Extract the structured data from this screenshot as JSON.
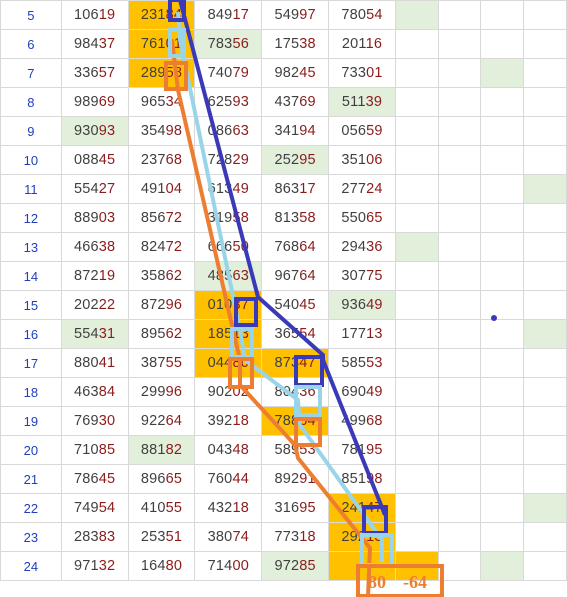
{
  "rows": [
    {
      "n": "5",
      "cells": [
        "10619",
        "23184",
        "84917",
        "54997",
        "78054"
      ]
    },
    {
      "n": "6",
      "cells": [
        "98437",
        "76101",
        "78356",
        "17538",
        "20116"
      ]
    },
    {
      "n": "7",
      "cells": [
        "33657",
        "28958",
        "74079",
        "98245",
        "73301"
      ]
    },
    {
      "n": "8",
      "cells": [
        "98969",
        "96534",
        "62593",
        "43769",
        "51139"
      ]
    },
    {
      "n": "9",
      "cells": [
        "93093",
        "35498",
        "08663",
        "34194",
        "05659"
      ]
    },
    {
      "n": "10",
      "cells": [
        "08845",
        "23768",
        "72829",
        "25295",
        "35106"
      ]
    },
    {
      "n": "11",
      "cells": [
        "55427",
        "49104",
        "61349",
        "86317",
        "27724"
      ]
    },
    {
      "n": "12",
      "cells": [
        "88903",
        "85672",
        "31958",
        "81358",
        "55065"
      ]
    },
    {
      "n": "13",
      "cells": [
        "46638",
        "82472",
        "66650",
        "76864",
        "29436"
      ]
    },
    {
      "n": "14",
      "cells": [
        "87219",
        "35862",
        "48563",
        "96764",
        "30775"
      ]
    },
    {
      "n": "15",
      "cells": [
        "20222",
        "87296",
        "01037",
        "54045",
        "93649"
      ]
    },
    {
      "n": "16",
      "cells": [
        "55431",
        "89562",
        "18513",
        "36554",
        "17713"
      ]
    },
    {
      "n": "17",
      "cells": [
        "88041",
        "38755",
        "04480",
        "87347",
        "58553"
      ]
    },
    {
      "n": "18",
      "cells": [
        "46384",
        "29996",
        "90202",
        "80436",
        "69049"
      ]
    },
    {
      "n": "19",
      "cells": [
        "76930",
        "92264",
        "39218",
        "78864",
        "49968"
      ]
    },
    {
      "n": "20",
      "cells": [
        "71085",
        "88182",
        "04348",
        "58953",
        "78195"
      ]
    },
    {
      "n": "21",
      "cells": [
        "78645",
        "89665",
        "76044",
        "89291",
        "85198"
      ]
    },
    {
      "n": "22",
      "cells": [
        "74954",
        "41055",
        "43218",
        "31695",
        "24147"
      ]
    },
    {
      "n": "23",
      "cells": [
        "28383",
        "25351",
        "38074",
        "77318",
        "29213"
      ]
    },
    {
      "n": "24",
      "cells": [
        "97132",
        "16480",
        "71400",
        "97285",
        ""
      ]
    }
  ],
  "highlight": {
    "orange_cells": [
      [
        0,
        1
      ],
      [
        1,
        1
      ],
      [
        2,
        1
      ],
      [
        10,
        2
      ],
      [
        11,
        2
      ],
      [
        12,
        2
      ],
      [
        12,
        3
      ],
      [
        14,
        3
      ],
      [
        17,
        4
      ],
      [
        18,
        4
      ],
      [
        19,
        4
      ]
    ],
    "green_cells": [
      [
        0,
        5
      ],
      [
        1,
        2
      ],
      [
        3,
        4
      ],
      [
        4,
        0
      ],
      [
        5,
        3
      ],
      [
        9,
        2
      ],
      [
        10,
        4
      ],
      [
        11,
        0
      ],
      [
        12,
        2
      ],
      [
        15,
        1
      ],
      [
        17,
        4
      ],
      [
        19,
        3
      ],
      [
        2,
        7
      ],
      [
        6,
        8
      ],
      [
        8,
        5
      ],
      [
        11,
        8
      ],
      [
        17,
        8
      ],
      [
        19,
        7
      ]
    ]
  },
  "colors": {
    "orange": "#ffc000",
    "green": "#e2efda",
    "navy": "#3a3ab8",
    "lightblue": "#9ad4e8",
    "orangeline": "#ed7d31"
  },
  "result": {
    "value_a": "80",
    "value_b": "-64"
  }
}
